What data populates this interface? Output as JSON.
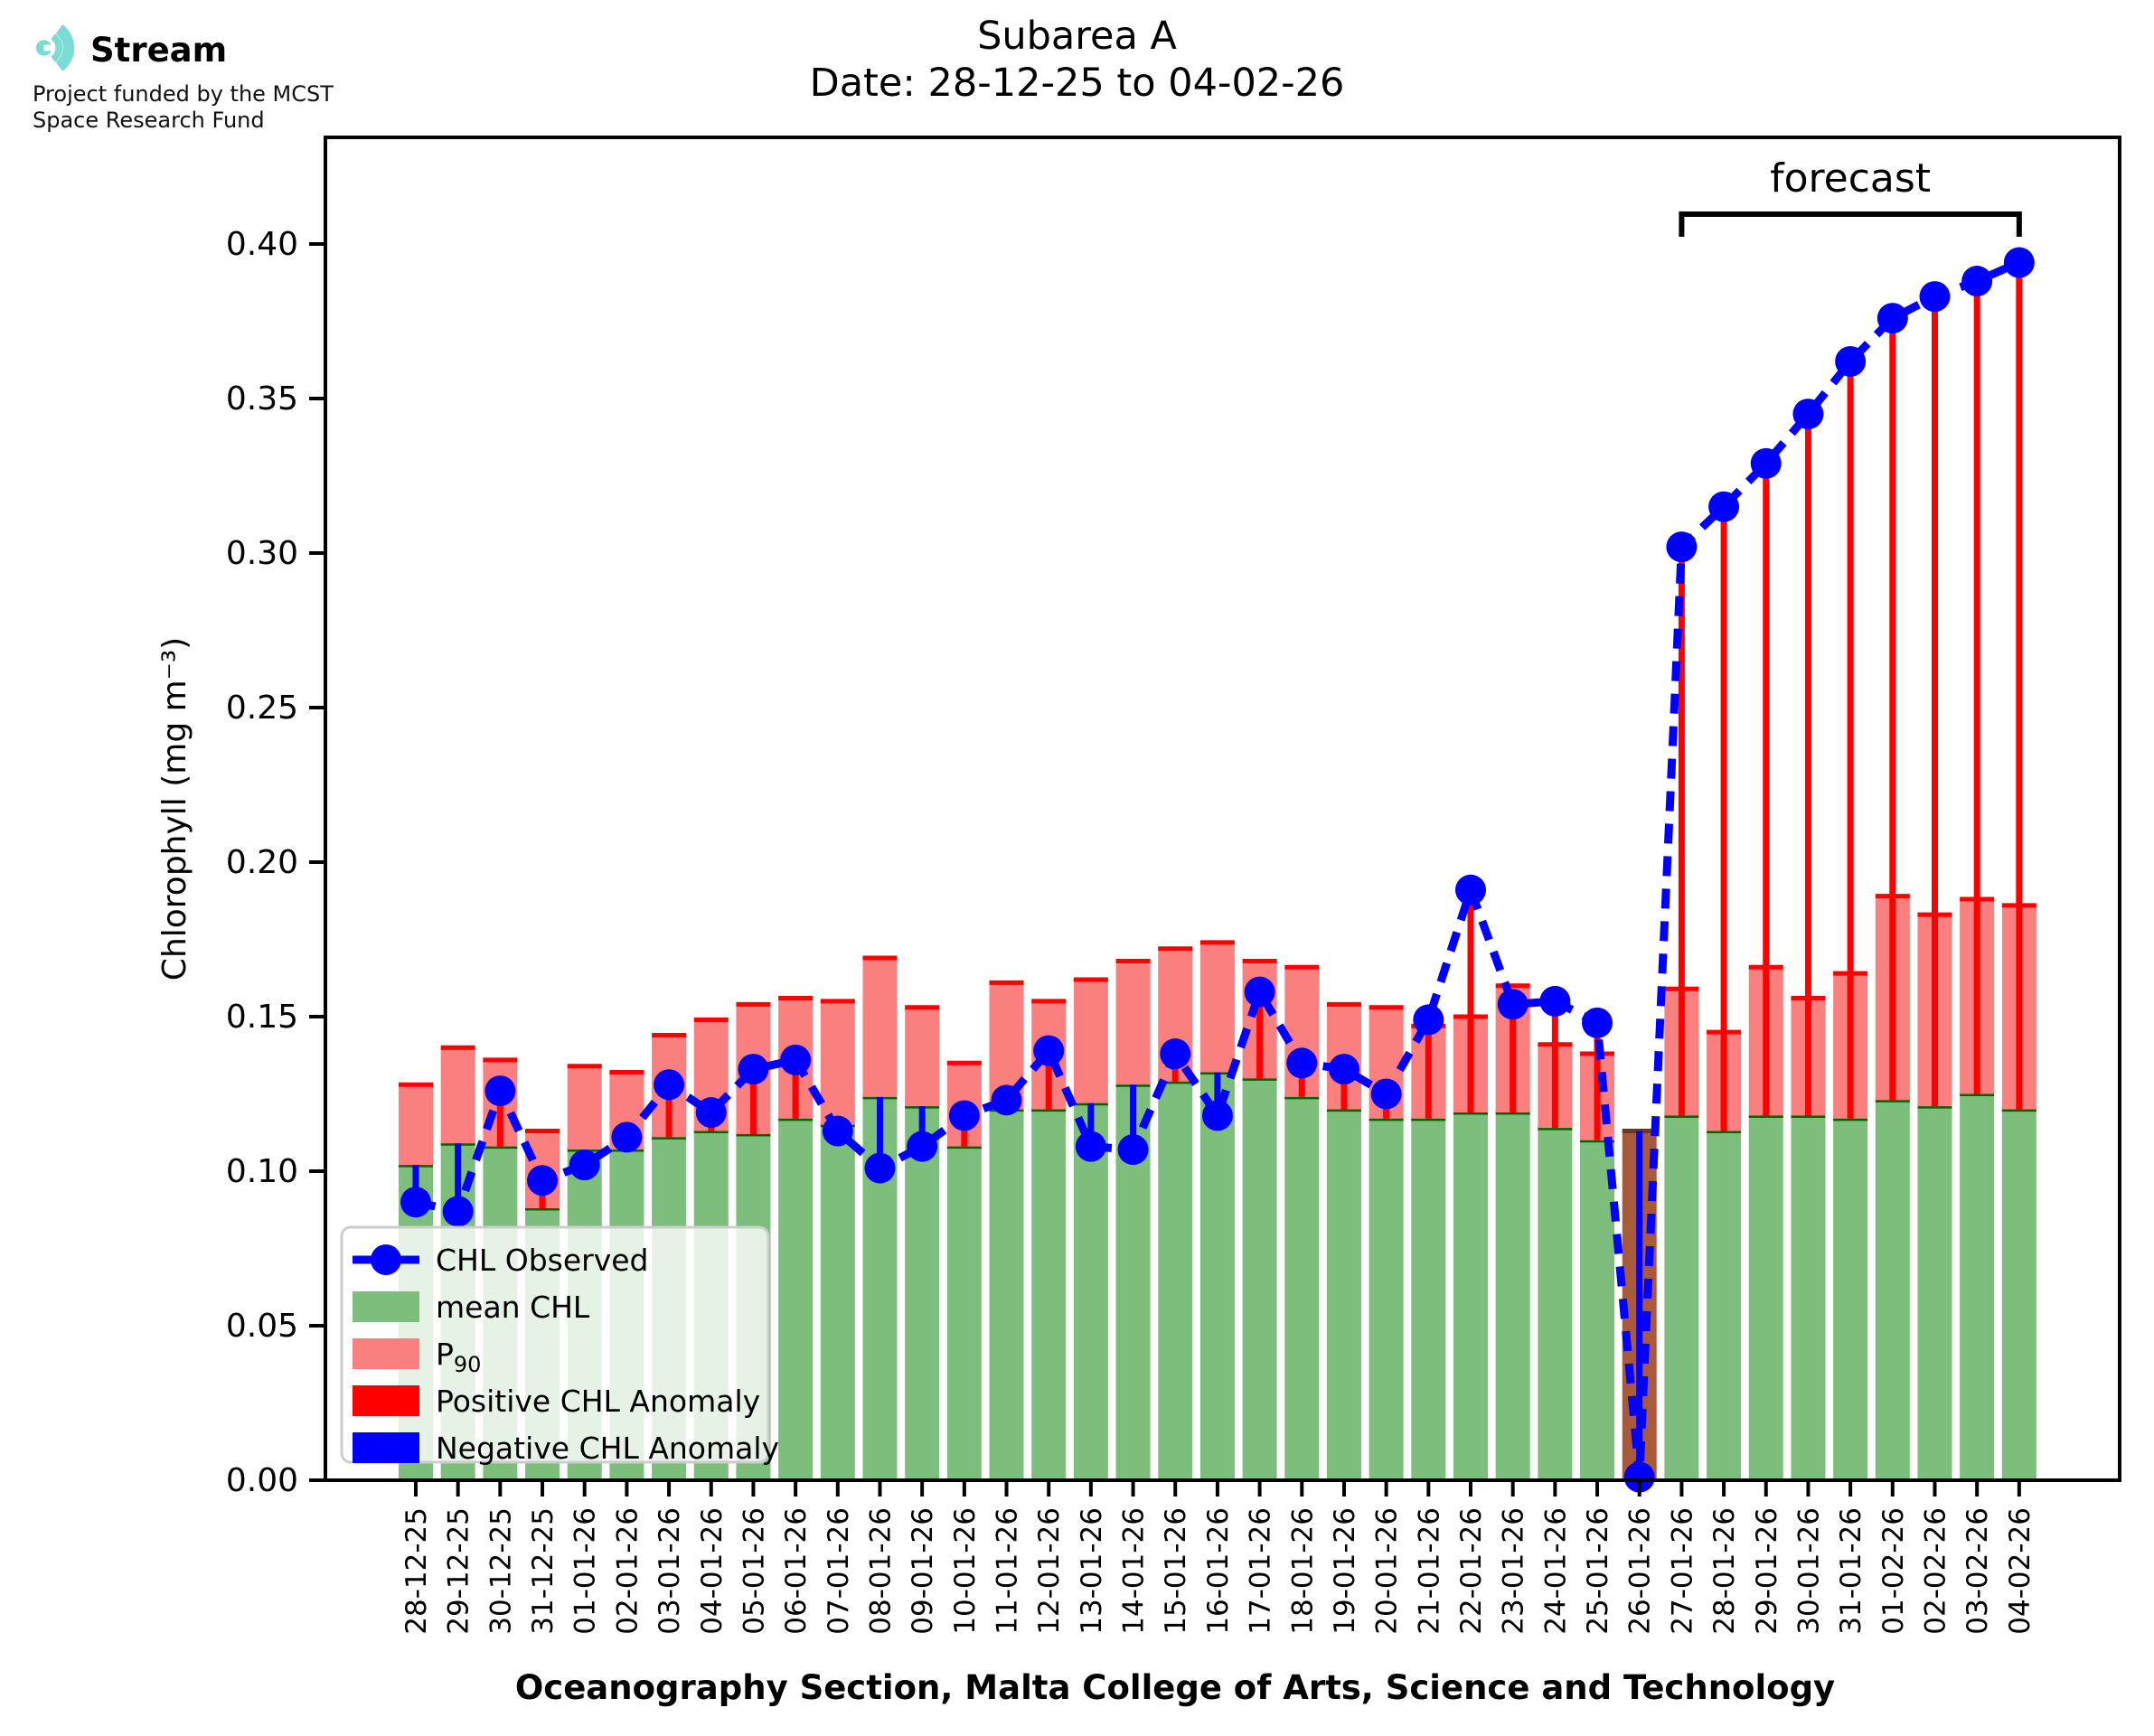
{
  "header": {
    "logo": {
      "brand": "Stream",
      "subtitle_line1": "Project funded by the MCST",
      "subtitle_line2": "Space Research Fund",
      "icon_name": "sound-wave-arcs-icon",
      "icon_color": "#7adcd2"
    },
    "title_line1": "Subarea A",
    "title_line2": "Date: 28-12-25 to 04-02-26"
  },
  "chart_data": {
    "type": "bar",
    "title": "Subarea A",
    "subtitle": "Date: 28-12-25 to 04-02-26",
    "xlabel": "Oceanography Section, Malta College of Arts, Science and Technology",
    "ylabel": "Chlorophyll (mg m⁻³)",
    "ylim": [
      0,
      0.434
    ],
    "yticks": [
      0.0,
      0.05,
      0.1,
      0.15,
      0.2,
      0.25,
      0.3,
      0.35,
      0.4
    ],
    "grid": false,
    "legend_position": "lower left",
    "categories": [
      "28-12-25",
      "29-12-25",
      "30-12-25",
      "31-12-25",
      "01-01-26",
      "02-01-26",
      "03-01-26",
      "04-01-26",
      "05-01-26",
      "06-01-26",
      "07-01-26",
      "08-01-26",
      "09-01-26",
      "10-01-26",
      "11-01-26",
      "12-01-26",
      "13-01-26",
      "14-01-26",
      "15-01-26",
      "16-01-26",
      "17-01-26",
      "18-01-26",
      "19-01-26",
      "20-01-26",
      "21-01-26",
      "22-01-26",
      "23-01-26",
      "24-01-26",
      "25-01-26",
      "26-01-26",
      "27-01-26",
      "28-01-26",
      "29-01-26",
      "30-01-26",
      "31-01-26",
      "01-02-26",
      "02-02-26",
      "03-02-26",
      "04-02-26"
    ],
    "series": [
      {
        "name": "CHL Observed",
        "type": "line-markers-dashed",
        "color": "#0000ff",
        "values": [
          0.09,
          0.087,
          0.126,
          0.097,
          0.102,
          0.111,
          0.128,
          0.119,
          0.133,
          0.136,
          0.113,
          0.101,
          0.108,
          0.118,
          0.123,
          0.139,
          0.108,
          0.107,
          0.138,
          0.118,
          0.158,
          0.135,
          0.133,
          0.125,
          0.149,
          0.191,
          0.154,
          0.155,
          0.148,
          0.001,
          0.302,
          0.315,
          0.329,
          0.345,
          0.362,
          0.376,
          0.383,
          0.388,
          0.394
        ]
      },
      {
        "name": "mean CHL",
        "type": "bar",
        "color": "#7dbe7d",
        "edge_color": "#006400",
        "values": [
          0.102,
          0.109,
          0.108,
          0.088,
          0.107,
          0.107,
          0.111,
          0.113,
          0.112,
          0.117,
          0.115,
          0.124,
          0.121,
          0.108,
          0.12,
          0.12,
          0.122,
          0.128,
          0.129,
          0.132,
          0.13,
          0.124,
          0.12,
          0.117,
          0.117,
          0.119,
          0.119,
          0.114,
          0.11,
          0.113,
          0.118,
          0.113,
          0.118,
          0.118,
          0.117,
          0.123,
          0.121,
          0.125,
          0.12
        ]
      },
      {
        "name": "P90",
        "type": "bar-stacked-on-mean",
        "color": "#fa8080",
        "edge_color": "#ff0000",
        "values": [
          0.128,
          0.14,
          0.136,
          0.113,
          0.134,
          0.132,
          0.144,
          0.149,
          0.154,
          0.156,
          0.155,
          0.169,
          0.153,
          0.135,
          0.161,
          0.155,
          0.162,
          0.168,
          0.172,
          0.174,
          0.168,
          0.166,
          0.154,
          0.153,
          0.147,
          0.15,
          0.16,
          0.141,
          0.138,
          null,
          0.159,
          0.145,
          0.166,
          0.156,
          0.164,
          0.189,
          0.183,
          0.188,
          0.186
        ]
      },
      {
        "name": "Positive CHL Anomaly",
        "type": "anomaly-stem",
        "color": "#ff0000"
      },
      {
        "name": "Negative CHL Anomaly",
        "type": "anomaly-stem",
        "color": "#0000ff"
      }
    ],
    "missing_observation_day": {
      "date": "26-01-26",
      "index": 29,
      "bar_color": "#a85a3a",
      "bar_edge_color": "#6e3a1d",
      "observed": 0.001
    },
    "forecast": {
      "label": "forecast",
      "start_date": "27-01-26",
      "end_date": "04-02-26",
      "start_index": 30,
      "end_index": 38
    },
    "legend": {
      "items": [
        {
          "label": "CHL Observed",
          "swatch": "line-marker",
          "color": "#0000ff"
        },
        {
          "label": "mean CHL",
          "swatch": "patch",
          "color": "#7dbe7d"
        },
        {
          "label": "P",
          "label_sub": "90",
          "swatch": "patch",
          "color": "#fa8080"
        },
        {
          "label": "Positive CHL Anomaly",
          "swatch": "patch",
          "color": "#ff0000"
        },
        {
          "label": "Negative CHL Anomaly",
          "swatch": "patch",
          "color": "#0000ff"
        }
      ]
    }
  }
}
